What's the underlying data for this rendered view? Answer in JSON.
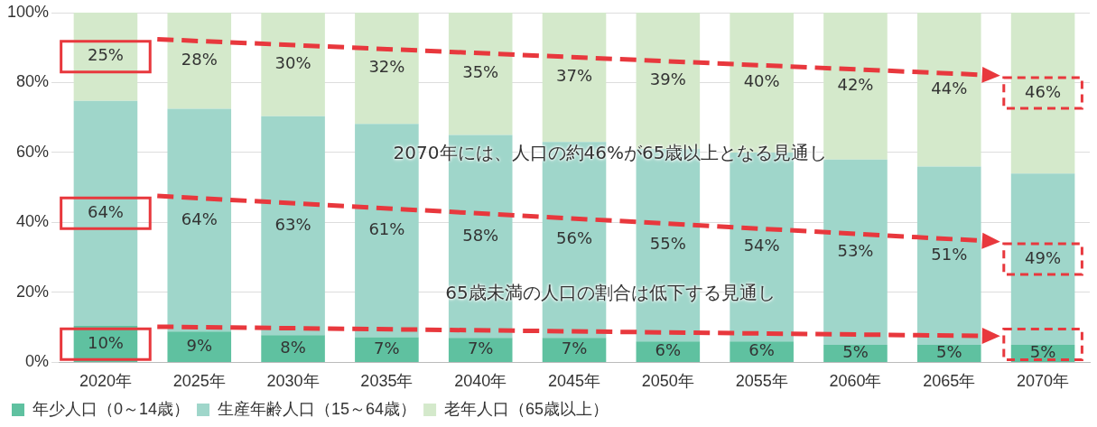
{
  "chart_data": {
    "type": "bar",
    "stacked": true,
    "categories": [
      "2020年",
      "2025年",
      "2030年",
      "2035年",
      "2040年",
      "2045年",
      "2050年",
      "2055年",
      "2060年",
      "2065年",
      "2070年"
    ],
    "series": [
      {
        "name": "年少人口（0～14歳）",
        "color": "#5fc1a0",
        "values": [
          10.4,
          8.8,
          7.8,
          7.2,
          7,
          7,
          6,
          6,
          5,
          5,
          5
        ],
        "value_labels": [
          "10%",
          "9%",
          "8%",
          "7%",
          "7%",
          "7%",
          "6%",
          "6%",
          "5%",
          "5%",
          "5%"
        ]
      },
      {
        "name": "生産年齢人口（15～64歳）",
        "color": "#9fd6ca",
        "values": [
          64.4,
          63.7,
          62.6,
          61,
          58,
          56,
          55,
          54,
          53,
          51,
          49
        ],
        "value_labels": [
          "64%",
          "64%",
          "63%",
          "61%",
          "58%",
          "56%",
          "55%",
          "54%",
          "53%",
          "51%",
          "49%"
        ]
      },
      {
        "name": "老年人口（65歳以上）",
        "color": "#d4e9cb",
        "values": [
          25.2,
          27.5,
          29.6,
          31.8,
          35,
          37,
          39,
          40,
          42,
          44,
          46
        ],
        "value_labels": [
          "25%",
          "28%",
          "30%",
          "32%",
          "35%",
          "37%",
          "39%",
          "40%",
          "42%",
          "44%",
          "46%"
        ]
      }
    ],
    "ylim": [
      0,
      100
    ],
    "yticks": [
      {
        "value": 0,
        "label": "0%"
      },
      {
        "value": 20,
        "label": "20%"
      },
      {
        "value": 40,
        "label": "40%"
      },
      {
        "value": 60,
        "label": "60%"
      },
      {
        "value": 80,
        "label": "80%"
      },
      {
        "value": 100,
        "label": "100%"
      }
    ],
    "grid": "y",
    "legend": "bottom",
    "annotations": [
      "2070年には、人口の約46%が65歳以上となる見通し",
      "65歳未満の人口の割合は低下する見通し"
    ]
  }
}
